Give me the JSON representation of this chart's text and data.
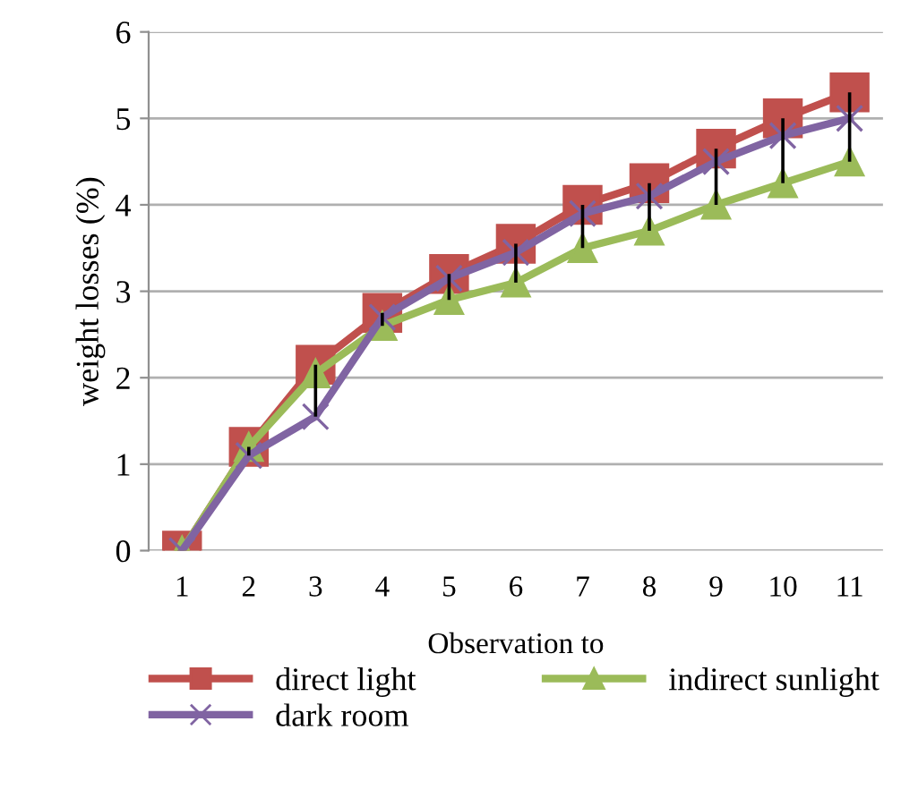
{
  "chart_data": {
    "type": "line",
    "xlabel": "Observation to",
    "ylabel": "weight losses (%)",
    "categories": [
      "1",
      "2",
      "3",
      "4",
      "5",
      "6",
      "7",
      "8",
      "9",
      "10",
      "11"
    ],
    "ylim": [
      0,
      6
    ],
    "yticks": [
      0,
      1,
      2,
      3,
      4,
      5,
      6
    ],
    "grid": "y",
    "legend": "bottom",
    "series": [
      {
        "name": "direct light",
        "color": "#c0504d",
        "marker": "square",
        "values": [
          0,
          1.2,
          2.15,
          2.75,
          3.2,
          3.55,
          4.0,
          4.25,
          4.65,
          5.0,
          5.3
        ]
      },
      {
        "name": "indirect sunlight",
        "color": "#9bbb59",
        "marker": "triangle",
        "values": [
          0,
          1.2,
          2.05,
          2.6,
          2.9,
          3.1,
          3.5,
          3.7,
          4.0,
          4.25,
          4.5
        ]
      },
      {
        "name": "dark room",
        "color": "#8064a2",
        "marker": "cross",
        "values": [
          0,
          1.1,
          1.55,
          2.7,
          3.15,
          3.45,
          3.9,
          4.1,
          4.5,
          4.8,
          5.0
        ],
        "errors": [
          null,
          [
            1.1,
            1.2
          ],
          [
            1.55,
            2.15
          ],
          [
            2.6,
            2.75
          ],
          [
            2.9,
            3.2
          ],
          [
            3.1,
            3.55
          ],
          [
            3.5,
            4.0
          ],
          [
            3.7,
            4.25
          ],
          [
            4.0,
            4.65
          ],
          [
            4.25,
            5.0
          ],
          [
            4.5,
            5.3
          ]
        ]
      }
    ]
  }
}
